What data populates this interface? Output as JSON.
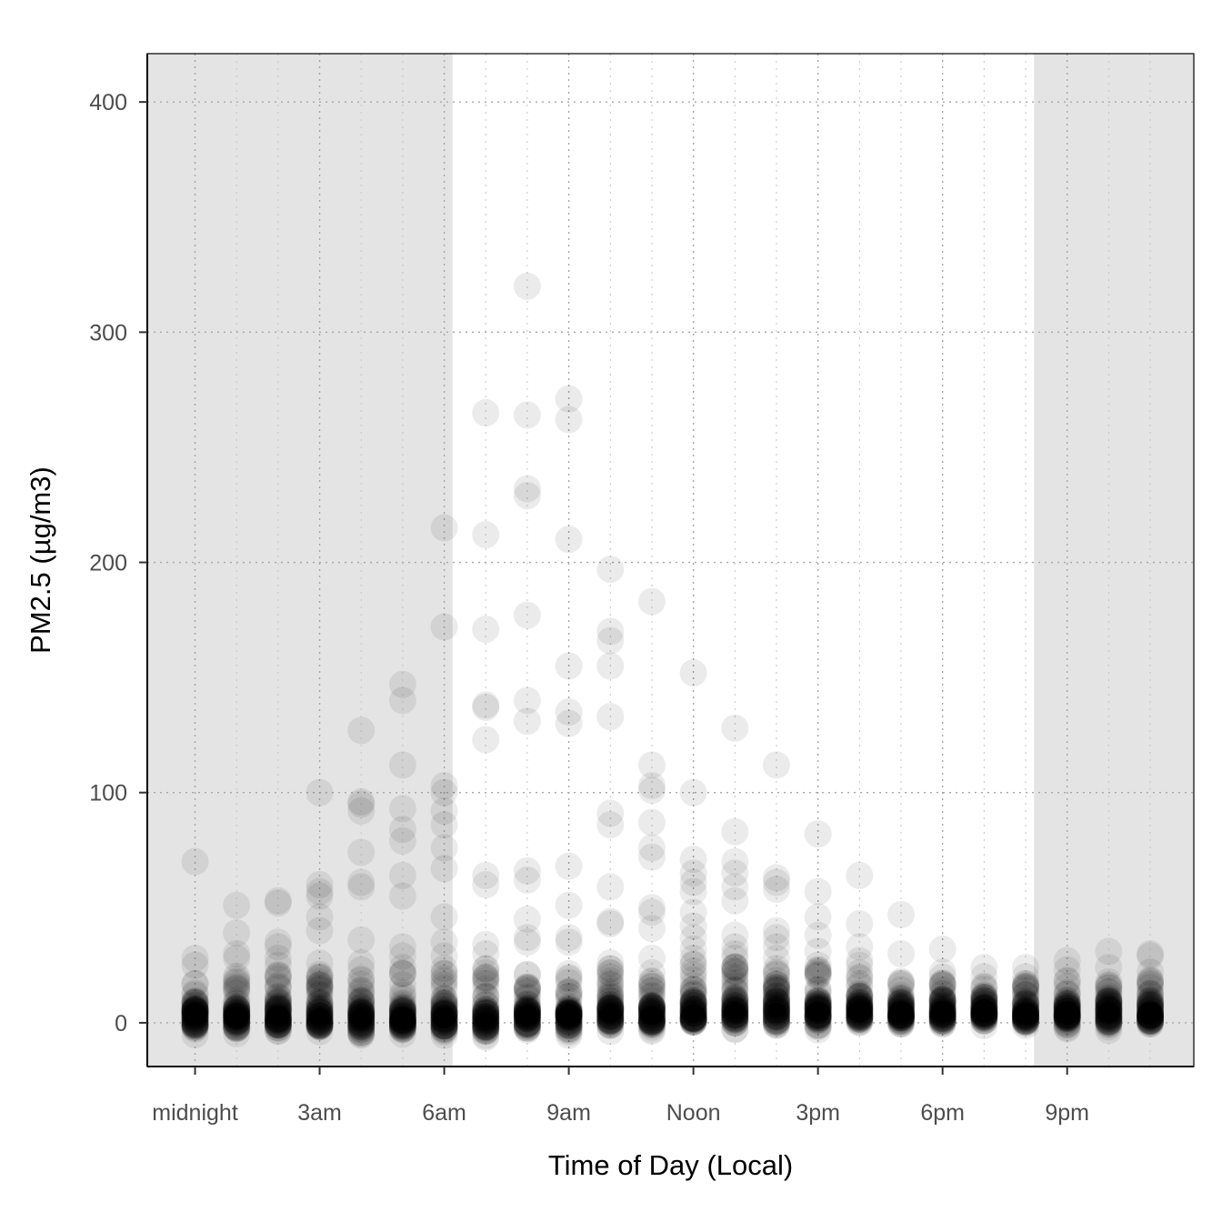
{
  "chart_data": {
    "type": "scatter",
    "title": "",
    "xlabel": "Time of Day (Local)",
    "ylabel": "PM2.5 (µg/m3)",
    "xlim": [
      -1.15,
      24.05
    ],
    "ylim": [
      -19,
      421
    ],
    "x_ticks": [
      {
        "value": 0,
        "label": "midnight"
      },
      {
        "value": 3,
        "label": "3am"
      },
      {
        "value": 6,
        "label": "6am"
      },
      {
        "value": 9,
        "label": "9am"
      },
      {
        "value": 12,
        "label": "Noon"
      },
      {
        "value": 15,
        "label": "3pm"
      },
      {
        "value": 18,
        "label": "6pm"
      },
      {
        "value": 21,
        "label": "9pm"
      }
    ],
    "y_ticks": [
      0,
      100,
      200,
      300,
      400
    ],
    "x_minor_grid": [
      1,
      2,
      4,
      5,
      7,
      8,
      10,
      11,
      13,
      14,
      16,
      17,
      19,
      20,
      22,
      23
    ],
    "y_minor_grid": [],
    "grid": "dotted",
    "shaded_intervals": [
      {
        "from": -1.15,
        "to": 6.2,
        "meaning": "night"
      },
      {
        "from": 20.2,
        "to": 24.05,
        "meaning": "night"
      }
    ],
    "point_color": "#000000",
    "point_opacity": 0.08,
    "series": [
      {
        "outliers": [
          {
            "x": 0,
            "y": 70
          },
          {
            "x": 0,
            "y": 28
          },
          {
            "x": 0,
            "y": 25
          },
          {
            "x": 0,
            "y": 17
          },
          {
            "x": 1,
            "y": 51
          },
          {
            "x": 1,
            "y": 39
          },
          {
            "x": 1,
            "y": 30
          },
          {
            "x": 1,
            "y": 28
          },
          {
            "x": 1,
            "y": 18
          },
          {
            "x": 2,
            "y": 53
          },
          {
            "x": 2,
            "y": 52
          },
          {
            "x": 2,
            "y": 35
          },
          {
            "x": 2,
            "y": 33
          },
          {
            "x": 2,
            "y": 28
          },
          {
            "x": 2,
            "y": 25
          },
          {
            "x": 2,
            "y": 20
          },
          {
            "x": 3,
            "y": 100
          },
          {
            "x": 3,
            "y": 60
          },
          {
            "x": 3,
            "y": 57
          },
          {
            "x": 3,
            "y": 55
          },
          {
            "x": 3,
            "y": 46
          },
          {
            "x": 3,
            "y": 40
          },
          {
            "x": 3,
            "y": 26
          },
          {
            "x": 3,
            "y": 20
          },
          {
            "x": 4,
            "y": 127
          },
          {
            "x": 4,
            "y": 96
          },
          {
            "x": 4,
            "y": 95
          },
          {
            "x": 4,
            "y": 92
          },
          {
            "x": 4,
            "y": 74
          },
          {
            "x": 4,
            "y": 61
          },
          {
            "x": 4,
            "y": 59
          },
          {
            "x": 4,
            "y": 36
          },
          {
            "x": 4,
            "y": 26
          },
          {
            "x": 4,
            "y": 23
          },
          {
            "x": 5,
            "y": 147
          },
          {
            "x": 5,
            "y": 140
          },
          {
            "x": 5,
            "y": 112
          },
          {
            "x": 5,
            "y": 93
          },
          {
            "x": 5,
            "y": 84
          },
          {
            "x": 5,
            "y": 79
          },
          {
            "x": 5,
            "y": 64
          },
          {
            "x": 5,
            "y": 55
          },
          {
            "x": 5,
            "y": 33
          },
          {
            "x": 5,
            "y": 29
          },
          {
            "x": 5,
            "y": 24
          },
          {
            "x": 6,
            "y": 215
          },
          {
            "x": 6,
            "y": 172
          },
          {
            "x": 6,
            "y": 103
          },
          {
            "x": 6,
            "y": 100
          },
          {
            "x": 6,
            "y": 92
          },
          {
            "x": 6,
            "y": 86
          },
          {
            "x": 6,
            "y": 76
          },
          {
            "x": 6,
            "y": 67
          },
          {
            "x": 6,
            "y": 46
          },
          {
            "x": 6,
            "y": 35
          },
          {
            "x": 6,
            "y": 29
          },
          {
            "x": 7,
            "y": 265
          },
          {
            "x": 7,
            "y": 212
          },
          {
            "x": 7,
            "y": 171
          },
          {
            "x": 7,
            "y": 138
          },
          {
            "x": 7,
            "y": 137
          },
          {
            "x": 7,
            "y": 123
          },
          {
            "x": 7,
            "y": 64
          },
          {
            "x": 7,
            "y": 60
          },
          {
            "x": 7,
            "y": 34
          },
          {
            "x": 7,
            "y": 30
          },
          {
            "x": 8,
            "y": 320
          },
          {
            "x": 8,
            "y": 264
          },
          {
            "x": 8,
            "y": 232
          },
          {
            "x": 8,
            "y": 229
          },
          {
            "x": 8,
            "y": 177
          },
          {
            "x": 8,
            "y": 140
          },
          {
            "x": 8,
            "y": 131
          },
          {
            "x": 8,
            "y": 66
          },
          {
            "x": 8,
            "y": 62
          },
          {
            "x": 8,
            "y": 45
          },
          {
            "x": 8,
            "y": 37
          },
          {
            "x": 8,
            "y": 35
          },
          {
            "x": 9,
            "y": 271
          },
          {
            "x": 9,
            "y": 262
          },
          {
            "x": 9,
            "y": 210
          },
          {
            "x": 9,
            "y": 155
          },
          {
            "x": 9,
            "y": 135
          },
          {
            "x": 9,
            "y": 130
          },
          {
            "x": 9,
            "y": 68
          },
          {
            "x": 9,
            "y": 51
          },
          {
            "x": 9,
            "y": 37
          },
          {
            "x": 9,
            "y": 35
          },
          {
            "x": 10,
            "y": 197
          },
          {
            "x": 10,
            "y": 170
          },
          {
            "x": 10,
            "y": 166
          },
          {
            "x": 10,
            "y": 155
          },
          {
            "x": 10,
            "y": 133
          },
          {
            "x": 10,
            "y": 91
          },
          {
            "x": 10,
            "y": 86
          },
          {
            "x": 10,
            "y": 59
          },
          {
            "x": 10,
            "y": 44
          },
          {
            "x": 10,
            "y": 43
          },
          {
            "x": 10,
            "y": 26
          },
          {
            "x": 11,
            "y": 183
          },
          {
            "x": 11,
            "y": 112
          },
          {
            "x": 11,
            "y": 103
          },
          {
            "x": 11,
            "y": 101
          },
          {
            "x": 11,
            "y": 87
          },
          {
            "x": 11,
            "y": 76
          },
          {
            "x": 11,
            "y": 72
          },
          {
            "x": 11,
            "y": 50
          },
          {
            "x": 11,
            "y": 48
          },
          {
            "x": 11,
            "y": 41
          },
          {
            "x": 11,
            "y": 28
          },
          {
            "x": 12,
            "y": 152
          },
          {
            "x": 12,
            "y": 100
          },
          {
            "x": 12,
            "y": 71
          },
          {
            "x": 12,
            "y": 65
          },
          {
            "x": 12,
            "y": 61
          },
          {
            "x": 12,
            "y": 57
          },
          {
            "x": 12,
            "y": 48
          },
          {
            "x": 12,
            "y": 42
          },
          {
            "x": 12,
            "y": 37
          },
          {
            "x": 12,
            "y": 32
          },
          {
            "x": 12,
            "y": 28
          },
          {
            "x": 13,
            "y": 128
          },
          {
            "x": 13,
            "y": 83
          },
          {
            "x": 13,
            "y": 70
          },
          {
            "x": 13,
            "y": 65
          },
          {
            "x": 13,
            "y": 59
          },
          {
            "x": 13,
            "y": 53
          },
          {
            "x": 13,
            "y": 38
          },
          {
            "x": 13,
            "y": 33
          },
          {
            "x": 13,
            "y": 30
          },
          {
            "x": 13,
            "y": 28
          },
          {
            "x": 14,
            "y": 112
          },
          {
            "x": 14,
            "y": 63
          },
          {
            "x": 14,
            "y": 61
          },
          {
            "x": 14,
            "y": 58
          },
          {
            "x": 14,
            "y": 40
          },
          {
            "x": 14,
            "y": 37
          },
          {
            "x": 14,
            "y": 33
          },
          {
            "x": 14,
            "y": 28
          },
          {
            "x": 15,
            "y": 82
          },
          {
            "x": 15,
            "y": 57
          },
          {
            "x": 15,
            "y": 46
          },
          {
            "x": 15,
            "y": 38
          },
          {
            "x": 15,
            "y": 31
          },
          {
            "x": 15,
            "y": 25
          },
          {
            "x": 16,
            "y": 64
          },
          {
            "x": 16,
            "y": 43
          },
          {
            "x": 16,
            "y": 33
          },
          {
            "x": 16,
            "y": 27
          },
          {
            "x": 16,
            "y": 25
          },
          {
            "x": 17,
            "y": 47
          },
          {
            "x": 17,
            "y": 30
          },
          {
            "x": 17,
            "y": 18
          },
          {
            "x": 18,
            "y": 32
          },
          {
            "x": 18,
            "y": 22
          },
          {
            "x": 19,
            "y": 24
          },
          {
            "x": 19,
            "y": 20
          },
          {
            "x": 20,
            "y": 24
          },
          {
            "x": 20,
            "y": 20
          },
          {
            "x": 21,
            "y": 27
          },
          {
            "x": 21,
            "y": 23
          },
          {
            "x": 22,
            "y": 31
          },
          {
            "x": 22,
            "y": 24
          },
          {
            "x": 23,
            "y": 30
          },
          {
            "x": 23,
            "y": 29
          },
          {
            "x": 23,
            "y": 22
          }
        ],
        "dense_ranges": [
          {
            "x": 0,
            "low": -2,
            "high": 20,
            "center": 3
          },
          {
            "x": 1,
            "low": -1,
            "high": 22,
            "center": 3
          },
          {
            "x": 2,
            "low": -1,
            "high": 22,
            "center": 3
          },
          {
            "x": 3,
            "low": -2,
            "high": 22,
            "center": 2
          },
          {
            "x": 4,
            "low": -3,
            "high": 20,
            "center": 2
          },
          {
            "x": 5,
            "low": -3,
            "high": 22,
            "center": 2
          },
          {
            "x": 6,
            "low": -2,
            "high": 24,
            "center": 2
          },
          {
            "x": 7,
            "low": -3,
            "high": 24,
            "center": 1
          },
          {
            "x": 8,
            "low": -2,
            "high": 22,
            "center": 2
          },
          {
            "x": 9,
            "low": -2,
            "high": 22,
            "center": 2
          },
          {
            "x": 10,
            "low": -1,
            "high": 24,
            "center": 3
          },
          {
            "x": 11,
            "low": -1,
            "high": 24,
            "center": 3
          },
          {
            "x": 12,
            "low": -1,
            "high": 26,
            "center": 4
          },
          {
            "x": 13,
            "low": 0,
            "high": 26,
            "center": 5
          },
          {
            "x": 14,
            "low": 0,
            "high": 26,
            "center": 5
          },
          {
            "x": 15,
            "low": 0,
            "high": 24,
            "center": 5
          },
          {
            "x": 16,
            "low": 0,
            "high": 22,
            "center": 5
          },
          {
            "x": 17,
            "low": -1,
            "high": 20,
            "center": 5
          },
          {
            "x": 18,
            "low": 0,
            "high": 20,
            "center": 5
          },
          {
            "x": 19,
            "low": 0,
            "high": 18,
            "center": 5
          },
          {
            "x": 20,
            "low": 0,
            "high": 18,
            "center": 4
          },
          {
            "x": 21,
            "low": 0,
            "high": 20,
            "center": 4
          },
          {
            "x": 22,
            "low": 0,
            "high": 18,
            "center": 4
          },
          {
            "x": 23,
            "low": -1,
            "high": 20,
            "center": 4
          }
        ]
      }
    ]
  }
}
